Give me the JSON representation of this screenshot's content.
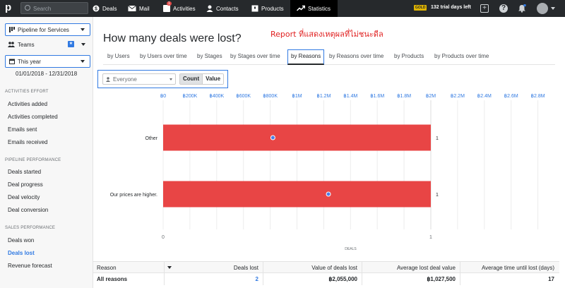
{
  "topbar": {
    "logo": "p",
    "search_placeholder": "Search",
    "nav": [
      {
        "label": "Deals",
        "icon": "dollar-icon"
      },
      {
        "label": "Mail",
        "icon": "mail-icon"
      },
      {
        "label": "Activities",
        "icon": "calendar-icon",
        "badge": "1"
      },
      {
        "label": "Contacts",
        "icon": "person-icon"
      },
      {
        "label": "Products",
        "icon": "box-icon"
      },
      {
        "label": "Statistics",
        "icon": "trend-icon",
        "active": true
      }
    ],
    "plan_badge": "GOLD",
    "trial_text": "132 trial days left"
  },
  "sidebar": {
    "pipeline_select": "Pipeline for Services",
    "teams_label": "Teams",
    "period_select": "This year",
    "date_range": "01/01/2018 - 12/31/2018",
    "sections": [
      {
        "title": "ACTIVITIES EFFORT",
        "items": [
          "Activities added",
          "Activities completed",
          "Emails sent",
          "Emails received"
        ]
      },
      {
        "title": "PIPELINE PERFORMANCE",
        "items": [
          "Deals started",
          "Deal progress",
          "Deal velocity",
          "Deal conversion"
        ]
      },
      {
        "title": "SALES PERFORMANCE",
        "items": [
          "Deals won",
          "Deals lost",
          "Revenue forecast"
        ]
      }
    ],
    "active_item": "Deals lost"
  },
  "main": {
    "title": "How many deals were lost?",
    "annotation": "Report ที่แสดงเหตุผลที่ไม่ชนะดีล",
    "tabs": [
      "by Users",
      "by Users over time",
      "by Stages",
      "by Stages over time",
      "by Reasons",
      "by Reasons over time",
      "by Products",
      "by Products over time"
    ],
    "active_tab": "by Reasons",
    "filter_user": "Everyone",
    "toggle": {
      "count": "Count",
      "value": "Value",
      "selected": "Count"
    }
  },
  "chart_data": {
    "type": "bar",
    "orientation": "horizontal",
    "categories": [
      "Other",
      "Our prices are higher."
    ],
    "series": [
      {
        "values": [
          1,
          1
        ],
        "color": "#e84545",
        "axis": "bottom"
      },
      {
        "values": [
          820000,
          1235000
        ],
        "color": "#4a7de8",
        "marker": "dot",
        "axis": "top"
      }
    ],
    "bar_labels": [
      "1",
      "1"
    ],
    "top_axis": {
      "ticks": [
        "฿0",
        "฿200K",
        "฿400K",
        "฿600K",
        "฿800K",
        "฿1M",
        "฿1.2M",
        "฿1.4M",
        "฿1.6M",
        "฿1.8M",
        "฿2M",
        "฿2.2M",
        "฿2.4M",
        "฿2.6M",
        "฿2.8M"
      ],
      "range": [
        0,
        2800000
      ],
      "color": "#317ae2"
    },
    "bottom_axis": {
      "ticks": [
        "0",
        "1"
      ],
      "range": [
        0,
        1
      ],
      "label": "DEALS"
    },
    "grid": true
  },
  "table": {
    "headers": [
      "Reason",
      "Deals lost",
      "Value of deals lost",
      "Average lost deal value",
      "Average time until lost (days)"
    ],
    "rows": [
      {
        "reason": "All reasons",
        "deals_lost": "2",
        "value": "฿2,055,000",
        "avg_value": "฿1,027,500",
        "avg_time": "17"
      }
    ]
  }
}
